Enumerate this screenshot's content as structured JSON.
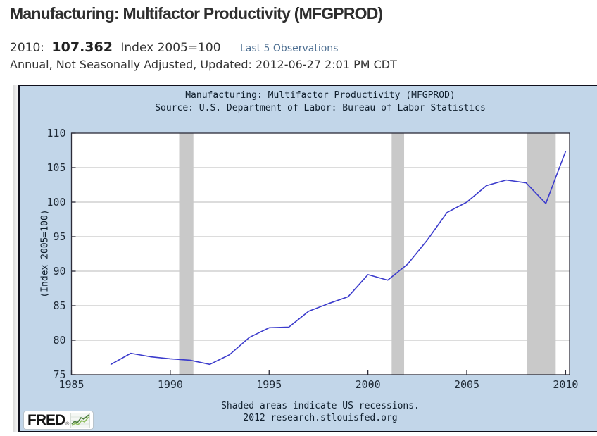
{
  "header": {
    "title": "Manufacturing: Multifactor Productivity (MFGPROD)",
    "observation": {
      "date_label": "2010:",
      "value": "107.362",
      "units": "Index 2005=100",
      "link_label": "Last 5 Observations",
      "link_color": "#4c6e91"
    },
    "meta_line": "Annual, Not Seasonally Adjusted, Updated: 2012-06-27 2:01 PM CDT"
  },
  "chart": {
    "title": "Manufacturing: Multifactor Productivity (MFGPROD)",
    "source": "Source: U.S. Department of Labor: Bureau of Labor Statistics",
    "ylabel": "(Index 2005=100)",
    "footer_line1": "Shaded areas indicate US recessions.",
    "footer_line2": "2012 research.stlouisfed.org",
    "logo_text": "FRED",
    "logo_registered": "®",
    "logo_icon": "line-chart-icon",
    "background_color": "#c2d6e9",
    "border_color": "#10101c"
  },
  "chart_data": {
    "type": "line",
    "title": "Manufacturing: Multifactor Productivity (MFGPROD)",
    "subtitle": "Source: U.S. Department of Labor: Bureau of Labor Statistics",
    "xlabel": "",
    "ylabel": "(Index 2005=100)",
    "x": [
      1987,
      1988,
      1989,
      1990,
      1991,
      1992,
      1993,
      1994,
      1995,
      1996,
      1997,
      1998,
      1999,
      2000,
      2001,
      2002,
      2003,
      2004,
      2005,
      2006,
      2007,
      2008,
      2009,
      2010
    ],
    "values": [
      76.5,
      78.1,
      77.6,
      77.3,
      77.1,
      76.5,
      77.9,
      80.4,
      81.8,
      81.9,
      84.2,
      85.3,
      86.3,
      89.5,
      88.7,
      91.0,
      94.5,
      98.5,
      100.0,
      102.4,
      103.2,
      102.8,
      99.8,
      107.362
    ],
    "series_name": "Manufacturing: Multifactor Productivity",
    "xlim": [
      1985,
      2010.2
    ],
    "ylim": [
      75,
      110
    ],
    "xticks": [
      1985,
      1990,
      1995,
      2000,
      2005,
      2010
    ],
    "yticks": [
      75,
      80,
      85,
      90,
      95,
      100,
      105,
      110
    ],
    "grid": true,
    "legend": "none",
    "recessions": [
      [
        1990.45,
        1991.17
      ],
      [
        2001.2,
        2001.83
      ],
      [
        2008.05,
        2009.5
      ]
    ],
    "recession_note": "Shaded areas indicate US recessions.",
    "line_color": "#3b3bcc",
    "recession_color": "#c9c9c9",
    "plot_bg": "#ffffff",
    "grid_color": "#b9b9b9",
    "axis_color": "#2b2b38"
  }
}
